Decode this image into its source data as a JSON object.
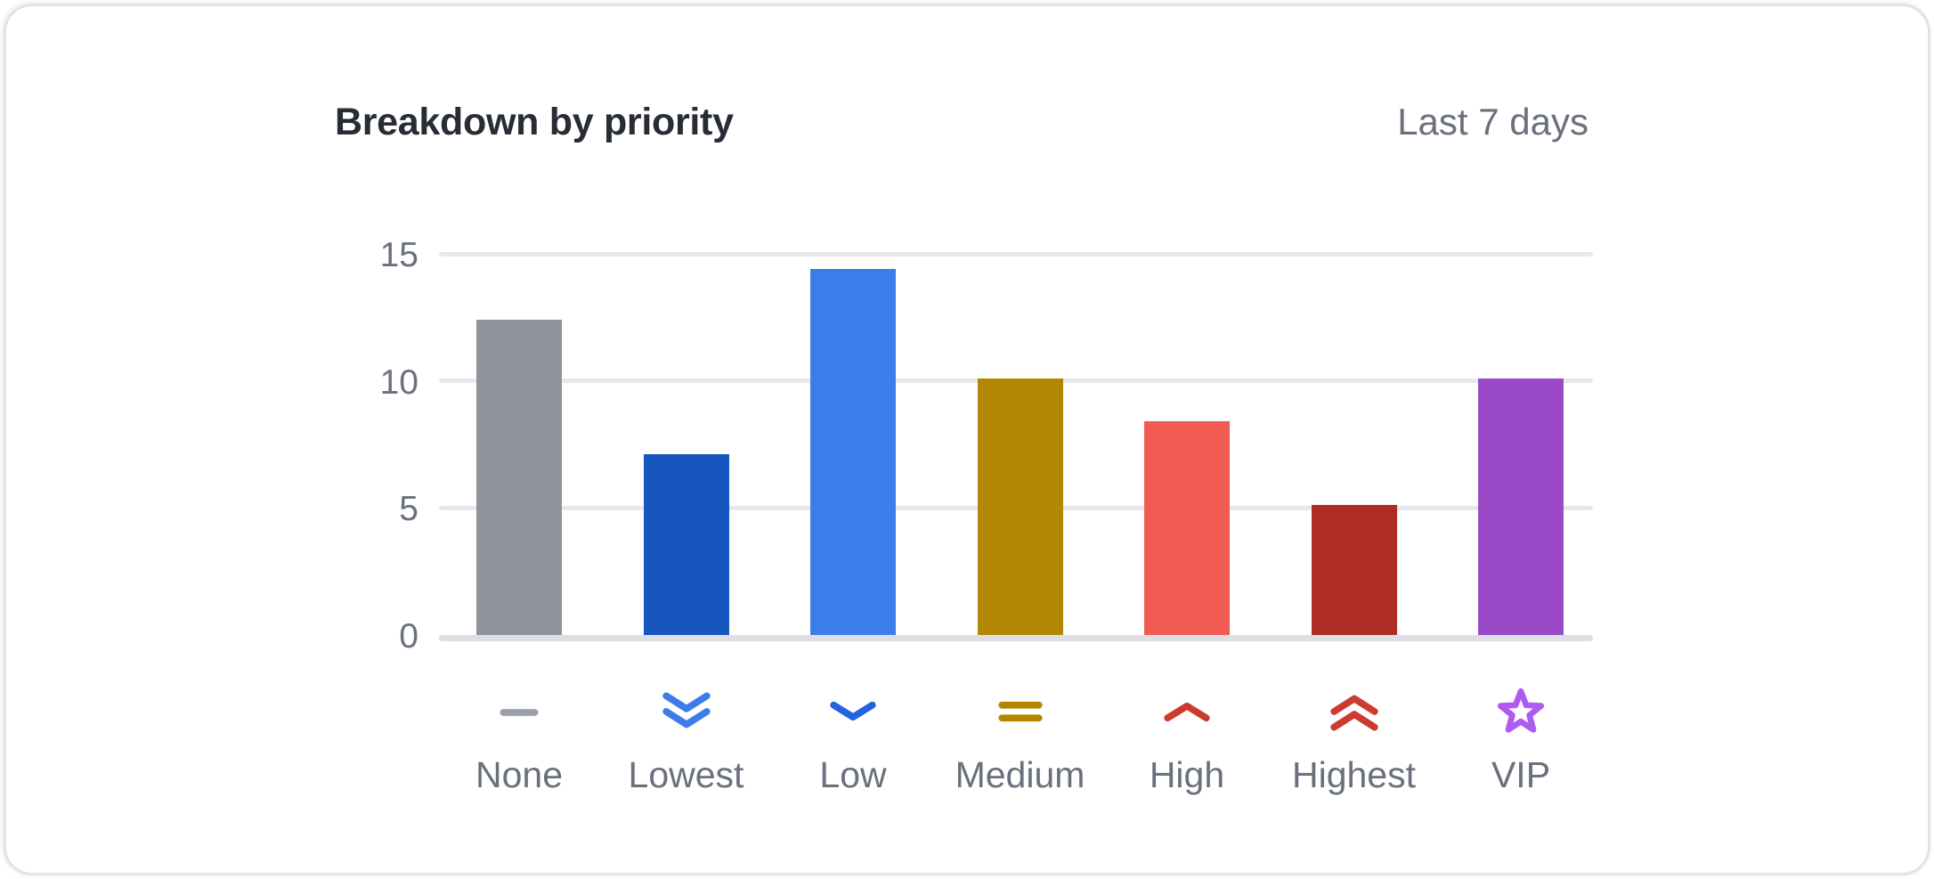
{
  "header": {
    "title": "Breakdown by priority",
    "period": "Last 7 days"
  },
  "chart_data": {
    "type": "bar",
    "title": "Breakdown by priority",
    "subtitle": "Last 7 days",
    "categories": [
      "None",
      "Lowest",
      "Low",
      "Medium",
      "High",
      "Highest",
      "VIP"
    ],
    "values": [
      12.4,
      7.1,
      14.4,
      10.1,
      8.4,
      5.1,
      10.1
    ],
    "bar_colors": [
      "#8e939c",
      "#1656be",
      "#3d7de9",
      "#b28704",
      "#f25b52",
      "#ad2c24",
      "#9a49c7"
    ],
    "icons": [
      "dash-icon",
      "chevrons-down-icon",
      "chevron-down-icon",
      "equals-icon",
      "chevron-up-icon",
      "chevrons-up-icon",
      "star-icon"
    ],
    "icon_colors": [
      "#9ba1ab",
      "#3b7bea",
      "#2463de",
      "#b38600",
      "#cc3b30",
      "#cc3b30",
      "#ae5bef"
    ],
    "y_ticks": [
      0,
      5,
      10,
      15
    ],
    "ylim": [
      0,
      15
    ],
    "grid": "horizontal",
    "legend": "none",
    "xlabel": "",
    "ylabel": ""
  },
  "colors": {
    "title_text": "#272c35",
    "secondary_text": "#6a707c",
    "gridline": "#e7e8ec",
    "baseline": "#dddfe4",
    "card_border": "#e2e3e8",
    "card_background": "#ffffff"
  }
}
